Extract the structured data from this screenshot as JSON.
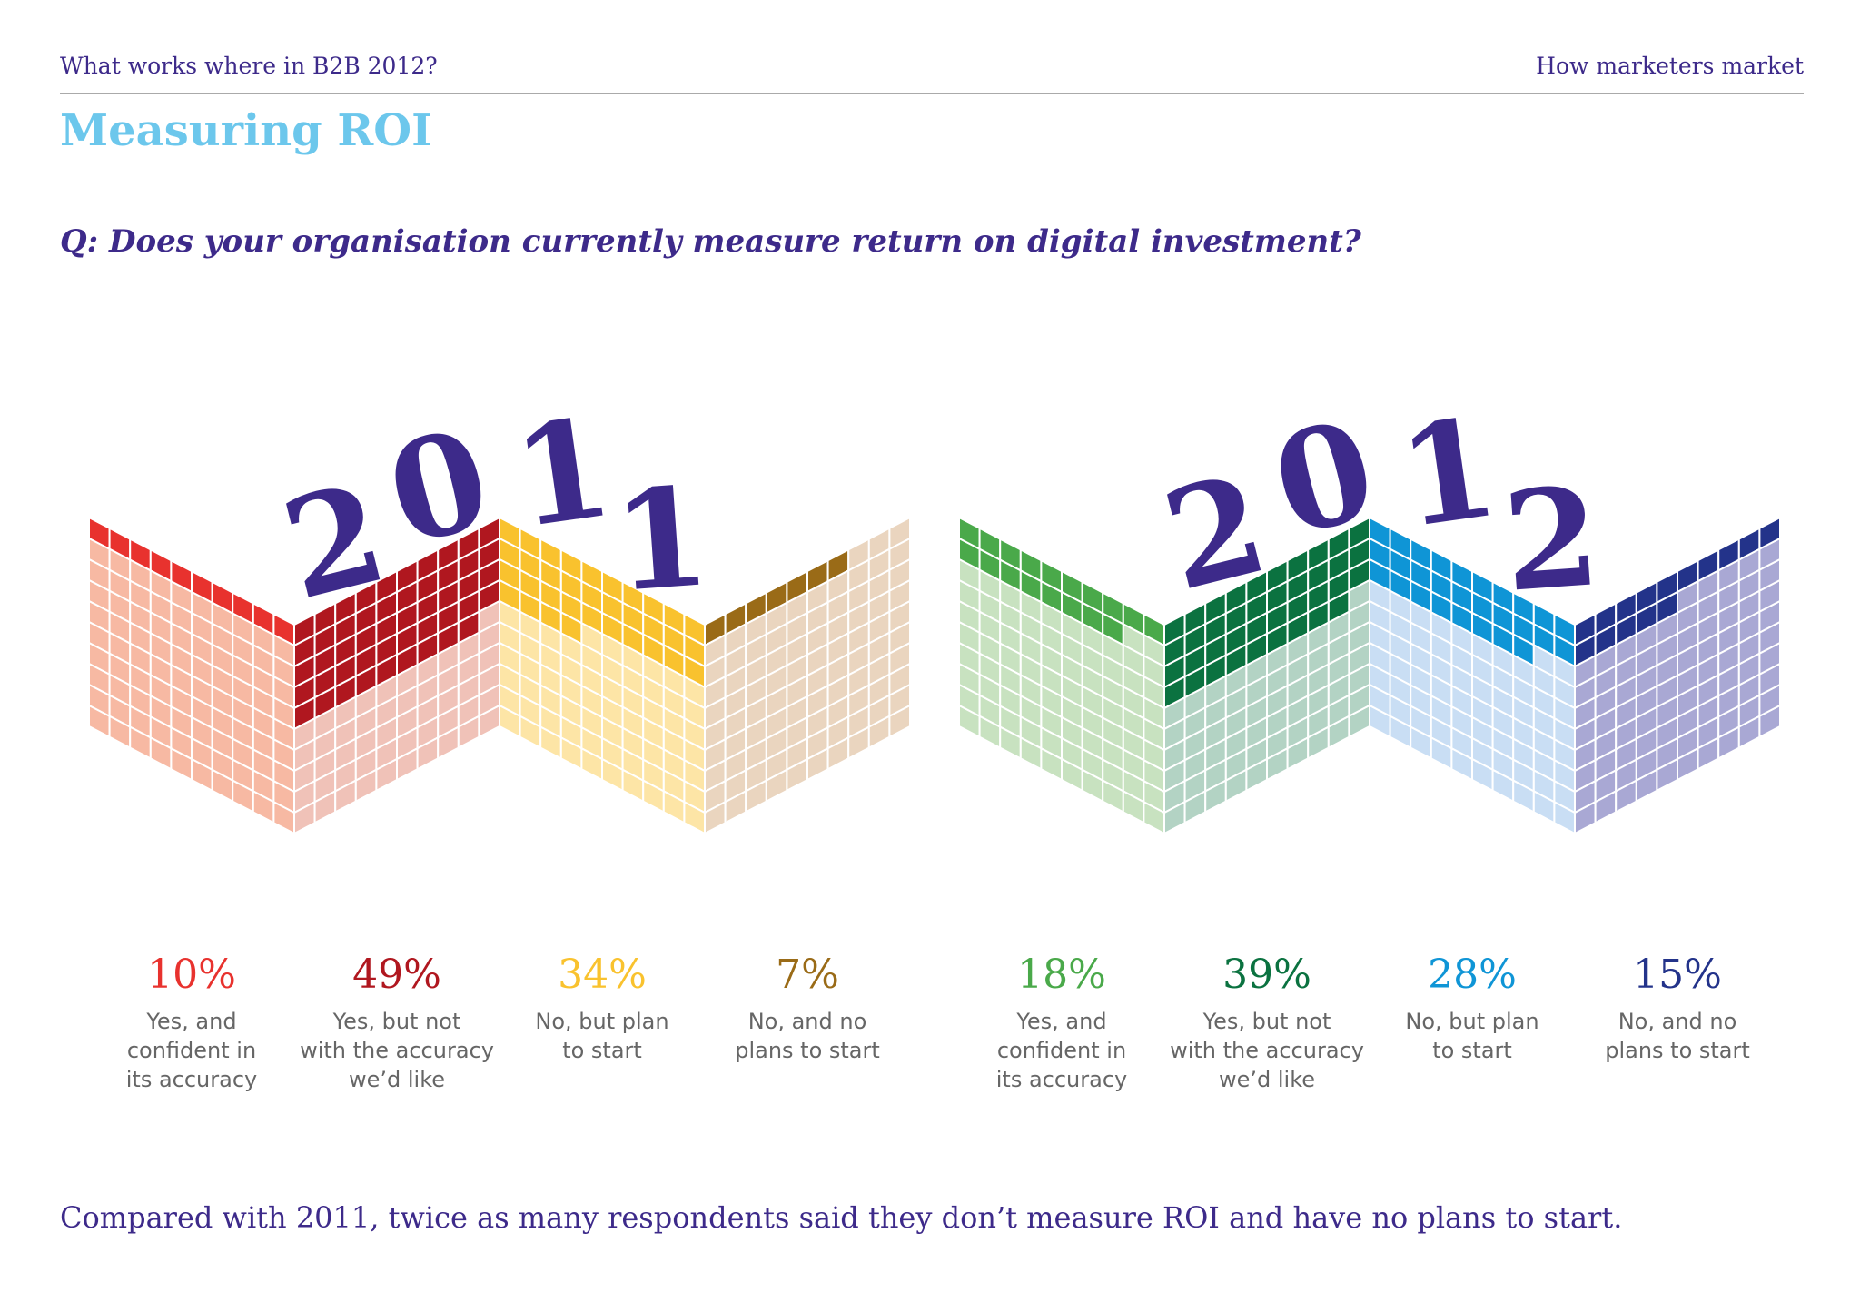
{
  "header": {
    "left": "What works where in B2B 2012?",
    "right": "How marketers market"
  },
  "title": "Measuring ROI",
  "question": "Q: Does your organisation currently measure return on digital investment?",
  "footnote": "Compared with 2011, twice as many respondents said they don’t measure ROI and have no plans to start.",
  "chart_data": [
    {
      "type": "bar",
      "year_label": "2011",
      "series": [
        {
          "value": 10,
          "display": "10%",
          "label_lines": [
            "Yes, and",
            "confident in",
            "its accuracy"
          ],
          "color": "#e8322e",
          "light": "#f7b9a3"
        },
        {
          "value": 49,
          "display": "49%",
          "label_lines": [
            "Yes, but not",
            "with the accuracy",
            "we’d like"
          ],
          "color": "#b0171f",
          "light": "#f0c2b8"
        },
        {
          "value": 34,
          "display": "34%",
          "label_lines": [
            "No, but plan",
            "to start"
          ],
          "color": "#f9c22e",
          "light": "#fde5a6"
        },
        {
          "value": 7,
          "display": "7%",
          "label_lines": [
            "No, and no",
            "plans to start"
          ],
          "color": "#9a6b17",
          "light": "#ead5bf"
        }
      ]
    },
    {
      "type": "bar",
      "year_label": "2012",
      "series": [
        {
          "value": 18,
          "display": "18%",
          "label_lines": [
            "Yes, and",
            "confident in",
            "its accuracy"
          ],
          "color": "#4aa94a",
          "light": "#c8e2c0"
        },
        {
          "value": 39,
          "display": "39%",
          "label_lines": [
            "Yes, but not",
            "with the accuracy",
            "we’d like"
          ],
          "color": "#0b7240",
          "light": "#b3d3c4"
        },
        {
          "value": 28,
          "display": "28%",
          "label_lines": [
            "No, but plan",
            "to start"
          ],
          "color": "#0f95d6",
          "light": "#c9def4"
        },
        {
          "value": 15,
          "display": "15%",
          "label_lines": [
            "No, and no",
            "plans to start"
          ],
          "color": "#23338a",
          "light": "#a9a8d4"
        }
      ]
    }
  ]
}
